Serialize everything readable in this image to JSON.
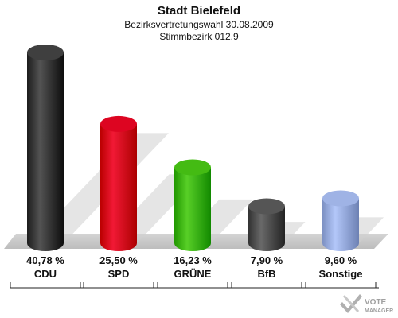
{
  "chart_data": {
    "type": "bar",
    "title": "Stadt Bielefeld",
    "subtitle": "Bezirksvertretungswahl 30.08.2009",
    "subtitle2": "Stimmbezirk 012.9",
    "categories": [
      "CDU",
      "SPD",
      "GRÜNE",
      "BfB",
      "Sonstige"
    ],
    "values": [
      40.78,
      25.5,
      16.23,
      7.9,
      9.6
    ],
    "value_labels": [
      "40,78 %",
      "25,50 %",
      "16,23 %",
      "7,90 %",
      "9,60 %"
    ],
    "colors": [
      "#3a3a3a",
      "#d8001c",
      "#3fb60e",
      "#505050",
      "#9aaee0"
    ],
    "ylim": [
      0,
      42
    ],
    "grid": false
  },
  "logo": {
    "brand": "VOTE",
    "brand_sub": "MANAGER"
  }
}
